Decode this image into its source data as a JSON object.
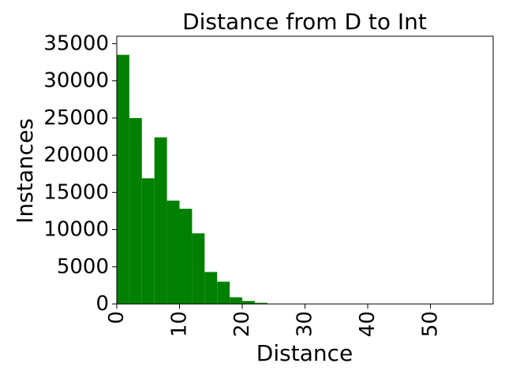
{
  "chart_data": {
    "type": "bar",
    "title": "Distance from D to Int",
    "xlabel": "Distance",
    "ylabel": "Instances",
    "xlim": [
      0,
      60
    ],
    "ylim": [
      0,
      36000
    ],
    "bin_width": 2,
    "bins": [
      {
        "x": 0,
        "value": 33500
      },
      {
        "x": 2,
        "value": 25000
      },
      {
        "x": 4,
        "value": 16900
      },
      {
        "x": 6,
        "value": 22400
      },
      {
        "x": 8,
        "value": 13900
      },
      {
        "x": 10,
        "value": 12800
      },
      {
        "x": 12,
        "value": 9500
      },
      {
        "x": 14,
        "value": 4300
      },
      {
        "x": 16,
        "value": 3000
      },
      {
        "x": 18,
        "value": 900
      },
      {
        "x": 20,
        "value": 400
      },
      {
        "x": 22,
        "value": 150
      },
      {
        "x": 24,
        "value": 50
      }
    ],
    "x_ticks": [
      {
        "value": 0,
        "label": "0"
      },
      {
        "value": 10,
        "label": "10"
      },
      {
        "value": 20,
        "label": "20"
      },
      {
        "value": 30,
        "label": "30"
      },
      {
        "value": 40,
        "label": "40"
      },
      {
        "value": 50,
        "label": "50"
      }
    ],
    "y_ticks": [
      {
        "value": 0,
        "label": "0"
      },
      {
        "value": 5000,
        "label": "5000"
      },
      {
        "value": 10000,
        "label": "10000"
      },
      {
        "value": 15000,
        "label": "15000"
      },
      {
        "value": 20000,
        "label": "20000"
      },
      {
        "value": 25000,
        "label": "25000"
      },
      {
        "value": 30000,
        "label": "30000"
      },
      {
        "value": 35000,
        "label": "35000"
      }
    ],
    "bar_color": "#008000",
    "grid": false,
    "legend": "none"
  }
}
